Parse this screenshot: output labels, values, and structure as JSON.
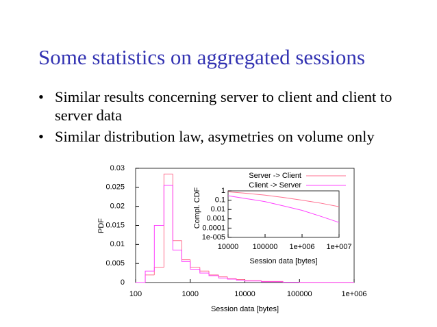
{
  "title": "Some statistics on aggregated sessions",
  "bullets": [
    "Similar results concerning server to client and client to server data",
    "Similar distribution law, asymetries on volume only"
  ],
  "chart_data": [
    {
      "type": "histogram",
      "xlabel": "Session data [bytes]",
      "ylabel": "PDF",
      "xscale": "log",
      "bins": [
        100,
        150,
        220,
        330,
        480,
        700,
        1000,
        1500,
        2200,
        3300,
        4800,
        7000,
        10000,
        20000,
        50000,
        100000,
        1000000
      ],
      "series": [
        {
          "name": "Server -> Client",
          "color": "#ff7090",
          "values": [
            0,
            0.002,
            0.004,
            0.0285,
            0.011,
            0.006,
            0.004,
            0.003,
            0.002,
            0.0015,
            0.001,
            0.0008,
            0.0005,
            0.0003,
            0.0001,
            3e-05
          ]
        },
        {
          "name": "Client -> Server",
          "color": "#ff40ff",
          "values": [
            0,
            0.003,
            0.015,
            0.0255,
            0.0085,
            0.0055,
            0.0035,
            0.0025,
            0.0018,
            0.0012,
            0.0009,
            0.0006,
            0.0004,
            0.0002,
            0.0001,
            3e-05
          ]
        }
      ],
      "xlim": [
        100,
        1000000
      ],
      "xticks": [
        100,
        1000,
        10000,
        100000,
        {
          "value": 1000000,
          "label": "1e+006"
        }
      ],
      "ylim": [
        0,
        0.03
      ],
      "yticks": [
        0,
        0.005,
        0.01,
        0.015,
        0.02,
        0.025,
        0.03
      ],
      "legend": "top-right"
    },
    {
      "type": "line",
      "xlabel": "Session data [bytes]",
      "ylabel": "Compl. CDF",
      "xscale": "log",
      "yscale": "log",
      "x": [
        10000,
        30000,
        100000,
        300000,
        1000000,
        3000000,
        10000000
      ],
      "series": [
        {
          "color": "#ff7090",
          "values": [
            0.8,
            0.55,
            0.35,
            0.2,
            0.1,
            0.05,
            0.02
          ]
        },
        {
          "color": "#ff40ff",
          "values": [
            0.3,
            0.15,
            0.07,
            0.025,
            0.008,
            0.002,
            0.0004
          ]
        }
      ],
      "xlim": [
        10000,
        10000000
      ],
      "xticks": [
        10000,
        100000,
        {
          "value": 1000000,
          "label": "1e+006"
        },
        {
          "value": 10000000,
          "label": "1e+007"
        }
      ],
      "ylim": [
        1e-05,
        1
      ],
      "yticks": [
        1,
        0.1,
        0.01,
        0.001,
        0.0001,
        {
          "value": 1e-05,
          "label": "1e-005"
        }
      ]
    }
  ]
}
